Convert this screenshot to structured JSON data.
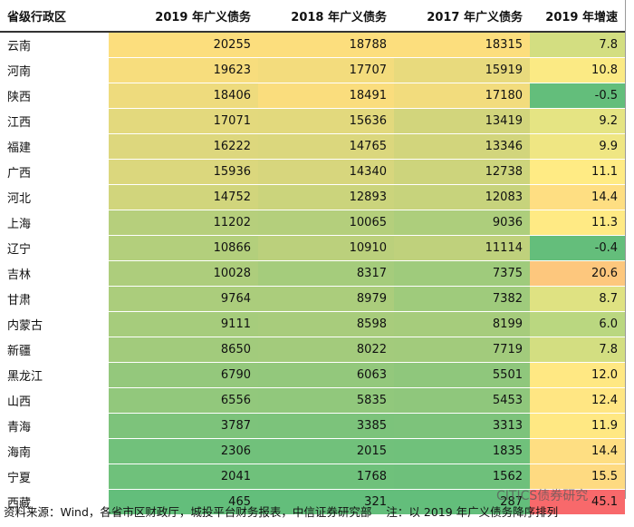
{
  "table": {
    "header": [
      "省级行政区",
      "2019 年广义债务",
      "2018 年广义债务",
      "2017 年广义债务",
      "2019 年增速"
    ],
    "rows": [
      [
        "云南",
        "20255",
        "18788",
        "18315",
        "7.8"
      ],
      [
        "河南",
        "19623",
        "17707",
        "15919",
        "10.8"
      ],
      [
        "陕西",
        "18406",
        "18491",
        "17180",
        "-0.5"
      ],
      [
        "江西",
        "17071",
        "15636",
        "13419",
        "9.2"
      ],
      [
        "福建",
        "16222",
        "14765",
        "13346",
        "9.9"
      ],
      [
        "广西",
        "15936",
        "14340",
        "12738",
        "11.1"
      ],
      [
        "河北",
        "14752",
        "12893",
        "12083",
        "14.4"
      ],
      [
        "上海",
        "11202",
        "10065",
        "9036",
        "11.3"
      ],
      [
        "辽宁",
        "10866",
        "10910",
        "11114",
        "-0.4"
      ],
      [
        "吉林",
        "10028",
        "8317",
        "7375",
        "20.6"
      ],
      [
        "甘肃",
        "9764",
        "8979",
        "7382",
        "8.7"
      ],
      [
        "内蒙古",
        "9111",
        "8598",
        "8199",
        "6.0"
      ],
      [
        "新疆",
        "8650",
        "8022",
        "7719",
        "7.8"
      ],
      [
        "黑龙江",
        "6790",
        "6063",
        "5501",
        "12.0"
      ],
      [
        "山西",
        "6556",
        "5835",
        "5453",
        "12.4"
      ],
      [
        "青海",
        "3787",
        "3385",
        "3313",
        "11.9"
      ],
      [
        "海南",
        "2306",
        "2015",
        "1835",
        "14.4"
      ],
      [
        "宁夏",
        "2041",
        "1768",
        "1562",
        "15.5"
      ],
      [
        "西藏",
        "465",
        "321",
        "287",
        "45.1"
      ]
    ]
  },
  "footer": {
    "source": "资料来源：Wind，各省市区财政厅，城投平台财务报表，中信证券研究部",
    "note": "注：以 2019 年广义债务降序排列",
    "watermark": "CITICS债券研究"
  }
}
